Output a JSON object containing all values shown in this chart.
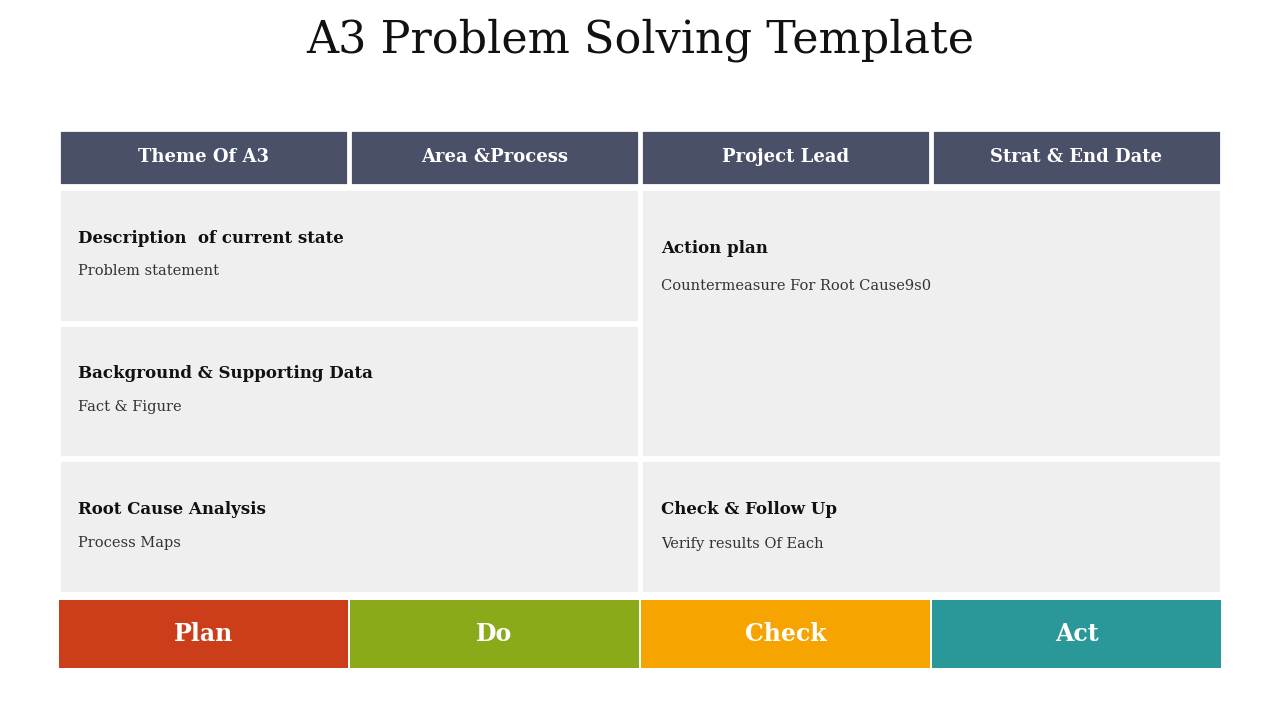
{
  "title": "A3 Problem Solving Template",
  "title_fontsize": 32,
  "title_font": "serif",
  "bg_color": "#ffffff",
  "header_bg": "#4a5068",
  "header_text_color": "#ffffff",
  "cell_bg": "#efefef",
  "headers": [
    "Theme Of A3",
    "Area &Process",
    "Project Lead",
    "Strat & End Date"
  ],
  "left_cells": [
    {
      "title": "Description  of current state",
      "subtitle": "Problem statement"
    },
    {
      "title": "Background & Supporting Data",
      "subtitle": "Fact & Figure"
    },
    {
      "title": "Root Cause Analysis",
      "subtitle": "Process Maps"
    }
  ],
  "right_cells": [
    {
      "title": "Action plan",
      "subtitle": "Countermeasure For Root Cause9s0",
      "rows": 2
    },
    {
      "title": "Check & Follow Up",
      "subtitle": "Verify results Of Each",
      "rows": 1
    }
  ],
  "pdca": [
    {
      "label": "Plan",
      "color": "#cc3d1a"
    },
    {
      "label": "Do",
      "color": "#8aaa1a"
    },
    {
      "label": "Check",
      "color": "#f5a400"
    },
    {
      "label": "Act",
      "color": "#2a9898"
    }
  ]
}
